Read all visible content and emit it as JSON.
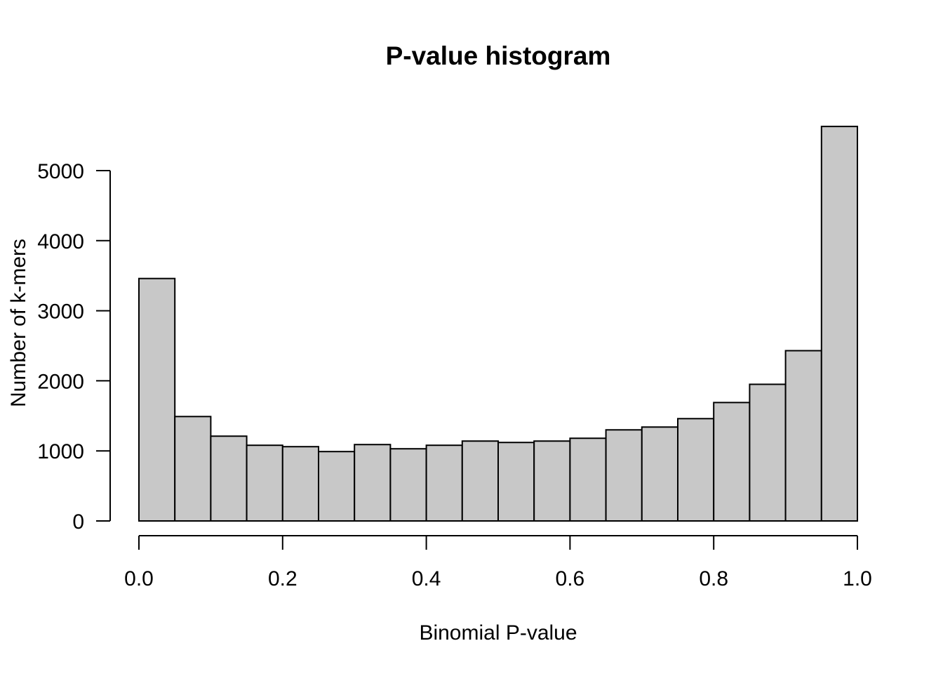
{
  "chart_data": {
    "type": "bar",
    "title": "P-value histogram",
    "xlabel": "Binomial P-value",
    "ylabel": "Number of k-mers",
    "bin_edges": [
      0.0,
      0.05,
      0.1,
      0.15,
      0.2,
      0.25,
      0.3,
      0.35,
      0.4,
      0.45,
      0.5,
      0.55,
      0.6,
      0.65,
      0.7,
      0.75,
      0.8,
      0.85,
      0.9,
      0.95,
      1.0
    ],
    "values": [
      3460,
      1490,
      1210,
      1080,
      1060,
      990,
      1090,
      1030,
      1080,
      1140,
      1120,
      1140,
      1180,
      1300,
      1340,
      1460,
      1690,
      1950,
      2430,
      5630
    ],
    "xlim": [
      0.0,
      1.0
    ],
    "ylim": [
      0,
      5000
    ],
    "xticks": [
      "0.0",
      "0.2",
      "0.4",
      "0.6",
      "0.8",
      "1.0"
    ],
    "xtick_values": [
      0.0,
      0.2,
      0.4,
      0.6,
      0.8,
      1.0
    ],
    "yticks": [
      "0",
      "1000",
      "2000",
      "3000",
      "4000",
      "5000"
    ],
    "ytick_values": [
      0,
      1000,
      2000,
      3000,
      4000,
      5000
    ],
    "bar_color": "#c8c8c8",
    "grid": false,
    "legend": "none"
  }
}
